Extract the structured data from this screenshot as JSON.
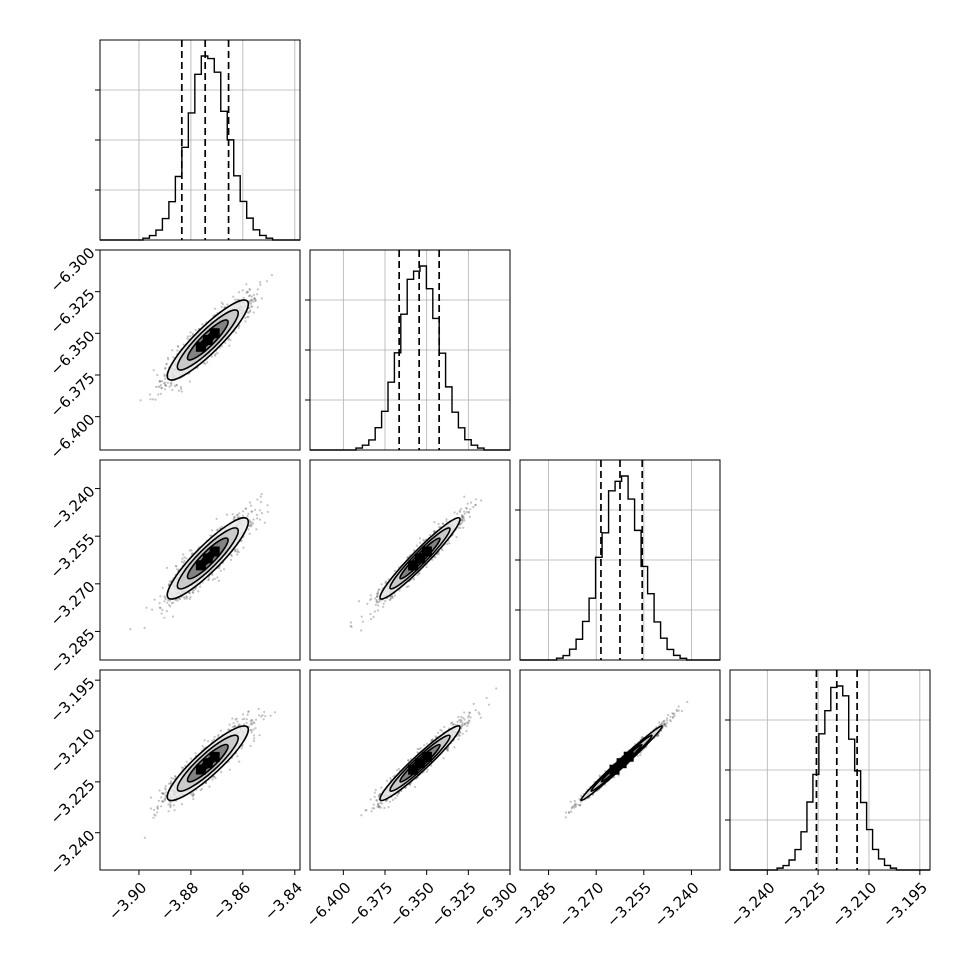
{
  "chart_data": {
    "type": "scatter",
    "title": "",
    "parameters": [
      {
        "index": 0,
        "name": "",
        "range": [
          -3.915,
          -3.838
        ],
        "mean": -3.8735,
        "sd": 0.0078,
        "quantiles": [
          -3.8835,
          -3.8745,
          -3.8655
        ],
        "x_ticks": [
          -3.9,
          -3.88,
          -3.86,
          -3.84
        ],
        "x_tick_labels": [
          "−3.90",
          "−3.88",
          "−3.86",
          "−3.84"
        ]
      },
      {
        "index": 1,
        "name": "",
        "range": [
          -6.42,
          -6.3
        ],
        "mean": -6.354,
        "sd": 0.012,
        "quantiles": [
          -6.3665,
          -6.3545,
          -6.3425
        ],
        "x_ticks": [
          -6.4,
          -6.375,
          -6.35,
          -6.325,
          -6.3
        ],
        "x_tick_labels": [
          "−6.400",
          "−6.375",
          "−6.350",
          "−6.325",
          "−6.300"
        ],
        "y_ticks": [
          -6.3,
          -6.325,
          -6.35,
          -6.375,
          -6.4
        ],
        "y_tick_labels": [
          "−6.300",
          "−6.325",
          "−6.350",
          "−6.375",
          "−6.400"
        ]
      },
      {
        "index": 2,
        "name": "",
        "range": [
          -3.294,
          -3.231
        ],
        "mean": -3.262,
        "sd": 0.0064,
        "quantiles": [
          -3.2685,
          -3.2625,
          -3.2555
        ],
        "x_ticks": [
          -3.285,
          -3.27,
          -3.255,
          -3.24
        ],
        "x_tick_labels": [
          "−3.285",
          "−3.270",
          "−3.255",
          "−3.240"
        ],
        "y_ticks": [
          -3.24,
          -3.255,
          -3.27,
          -3.285
        ],
        "y_tick_labels": [
          "−3.240",
          "−3.255",
          "−3.270",
          "−3.285"
        ]
      },
      {
        "index": 3,
        "name": "",
        "range": [
          -3.251,
          -3.192
        ],
        "mean": -3.2195,
        "sd": 0.0055,
        "quantiles": [
          -3.2255,
          -3.2195,
          -3.2135
        ],
        "x_ticks": [
          -3.24,
          -3.225,
          -3.21,
          -3.195
        ],
        "x_tick_labels": [
          "−3.240",
          "−3.225",
          "−3.210",
          "−3.195"
        ],
        "y_ticks": [
          -3.195,
          -3.21,
          -3.225,
          -3.24
        ],
        "y_tick_labels": [
          "−3.195",
          "−3.210",
          "−3.225",
          "−3.240"
        ]
      }
    ],
    "pairs": [
      {
        "row": 1,
        "col": 0,
        "correlation": 0.9
      },
      {
        "row": 2,
        "col": 0,
        "correlation": 0.9
      },
      {
        "row": 2,
        "col": 1,
        "correlation": 0.96
      },
      {
        "row": 3,
        "col": 0,
        "correlation": 0.9
      },
      {
        "row": 3,
        "col": 1,
        "correlation": 0.96
      },
      {
        "row": 3,
        "col": 2,
        "correlation": 0.99
      }
    ],
    "histogram_bins": 20,
    "contour_levels_sigma": [
      0.5,
      1.0,
      1.5,
      2.0
    ],
    "grid": true,
    "colors": {
      "line": "#000000",
      "scatter": "#555555",
      "grid": "#b0b0b0",
      "fill_dark": "#3a3a3a",
      "fill_mid": "#7a7a7a",
      "fill_light": "#c8c8c8",
      "fill_pale": "#ececec"
    }
  }
}
